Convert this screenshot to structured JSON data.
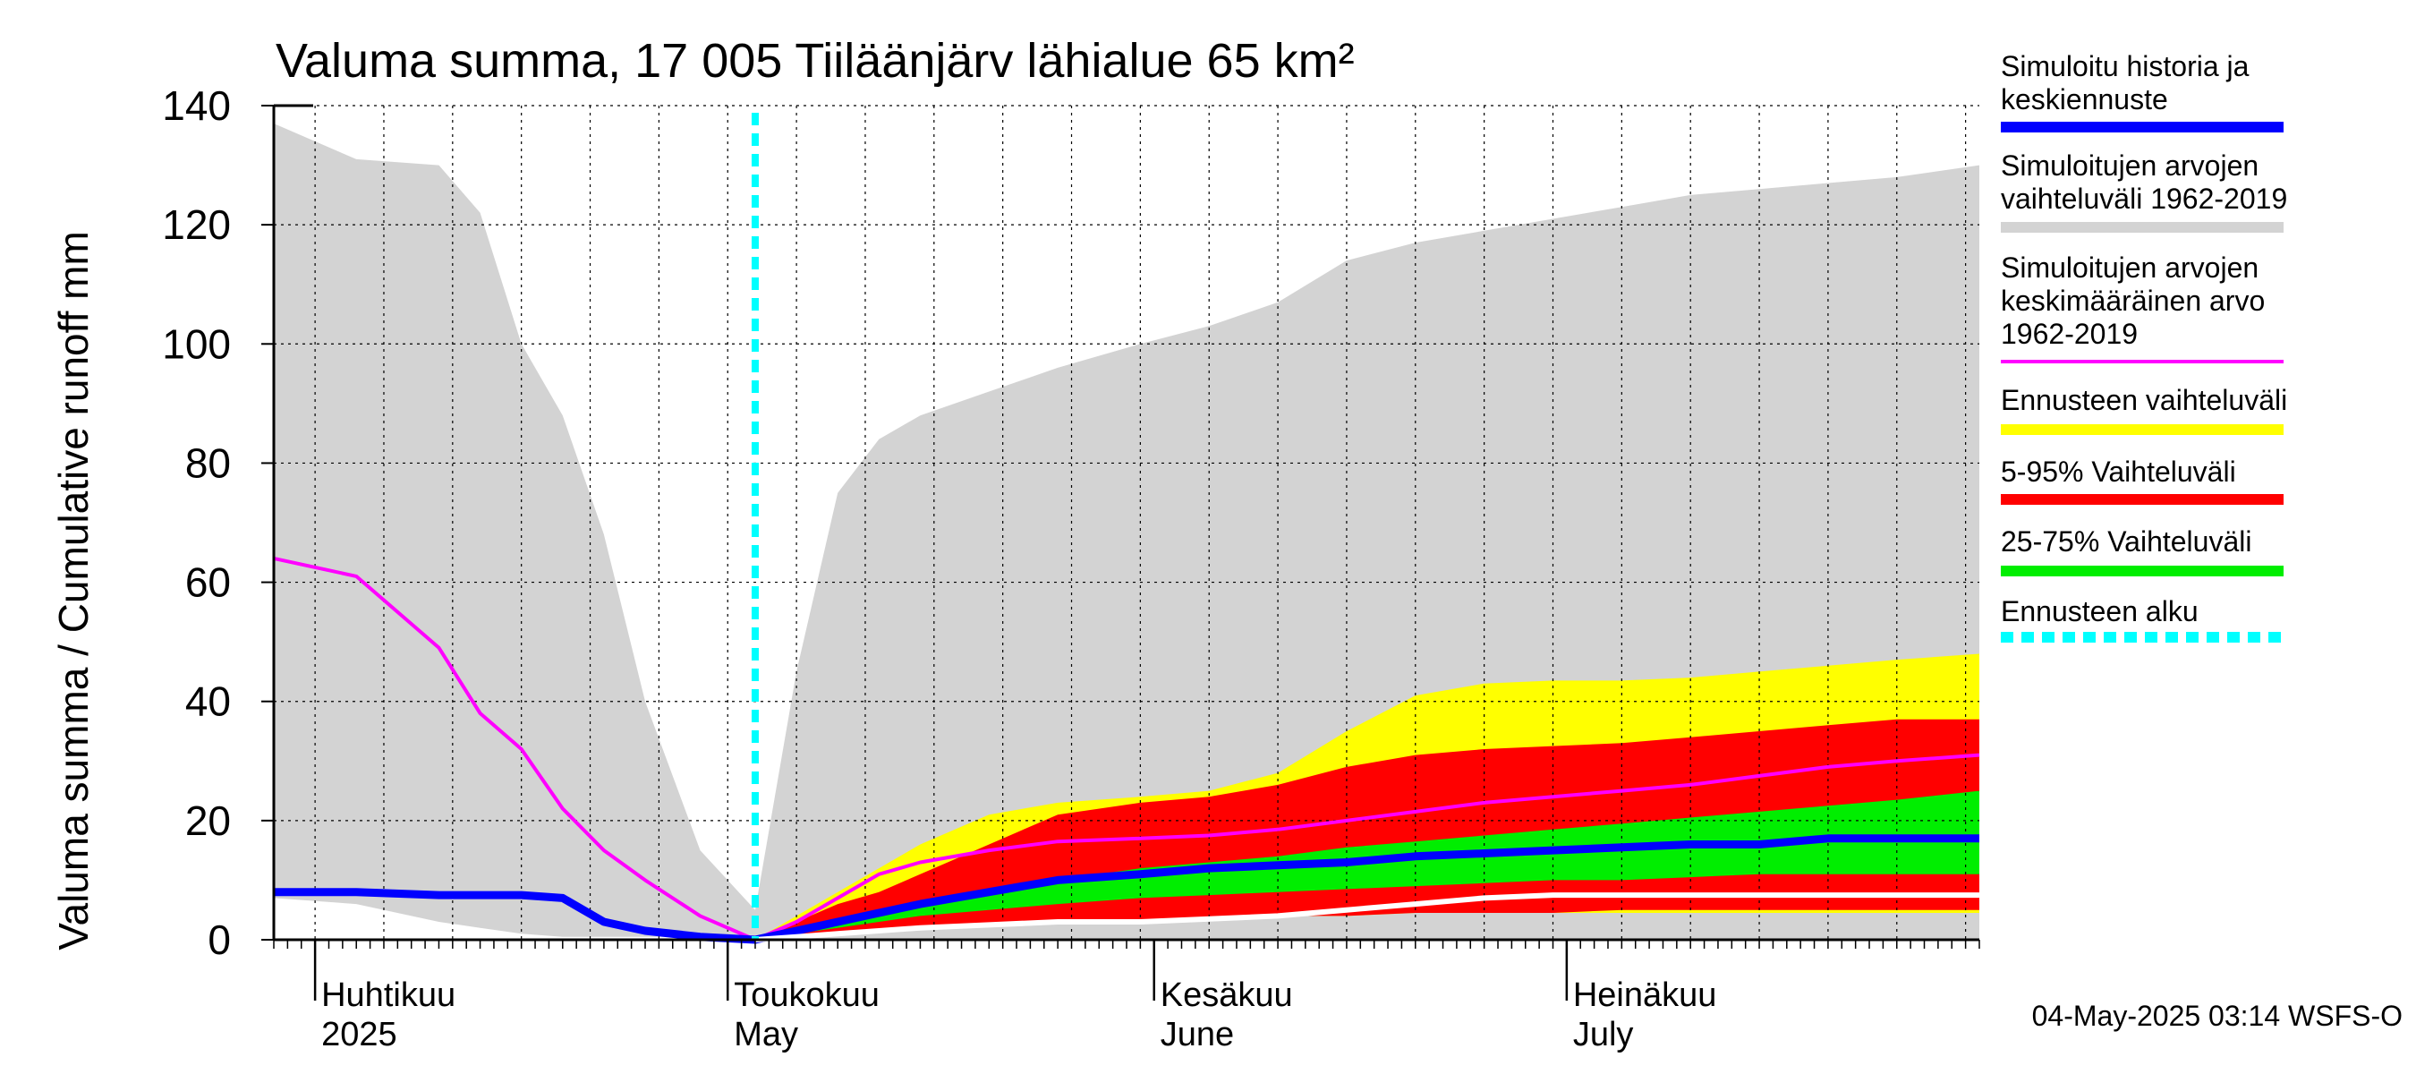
{
  "chart_data": {
    "type": "area",
    "title": "Valuma summa, 17 005 Tiiläänjärv lähialue 65 km²",
    "ylabel": "Valuma summa / Cumulative runoff    mm",
    "ylim": [
      0,
      140
    ],
    "yticks": [
      0,
      20,
      40,
      60,
      80,
      100,
      120,
      140
    ],
    "x_range": [
      "2025-03-29",
      "2025-07-31"
    ],
    "grid": true,
    "legend_placement": "right",
    "forecast_start": "2025-05-03",
    "months": [
      {
        "label": "Huhtikuu",
        "sub": "2025",
        "date": "2025-04-01"
      },
      {
        "label": "Toukokuu",
        "sub": "May",
        "date": "2025-05-01"
      },
      {
        "label": "Kesäkuu",
        "sub": "June",
        "date": "2025-06-01"
      },
      {
        "label": "Heinäkuu",
        "sub": "July",
        "date": "2025-07-01"
      }
    ],
    "x": [
      "2025-03-29",
      "2025-04-04",
      "2025-04-10",
      "2025-04-13",
      "2025-04-16",
      "2025-04-19",
      "2025-04-22",
      "2025-04-25",
      "2025-04-29",
      "2025-05-03",
      "2025-05-06",
      "2025-05-09",
      "2025-05-12",
      "2025-05-15",
      "2025-05-20",
      "2025-05-25",
      "2025-05-31",
      "2025-06-05",
      "2025-06-10",
      "2025-06-15",
      "2025-06-20",
      "2025-06-25",
      "2025-06-30",
      "2025-07-05",
      "2025-07-10",
      "2025-07-15",
      "2025-07-20",
      "2025-07-25",
      "2025-07-31"
    ],
    "series": [
      {
        "name": "Simuloitujen arvojen vaihteluväli 1962-2019",
        "color": "#d3d3d3",
        "lower": [
          7,
          6,
          3,
          2,
          1,
          0.5,
          0.5,
          0.5,
          0.5,
          0,
          0,
          0,
          0,
          0,
          0,
          0,
          0,
          0,
          0,
          0,
          0,
          0,
          0,
          0,
          0,
          0,
          0,
          0,
          0
        ],
        "upper": [
          137,
          131,
          130,
          122,
          100,
          88,
          68,
          40,
          15,
          5,
          45,
          75,
          84,
          88,
          92,
          96,
          100,
          103,
          107,
          114,
          117,
          119,
          121,
          123,
          125,
          126,
          127,
          128,
          130
        ]
      },
      {
        "name": "Ennusteen vaihteluväli",
        "color": "#ffff00",
        "lower": [
          null,
          null,
          null,
          null,
          null,
          null,
          null,
          null,
          null,
          0,
          0.5,
          1,
          1.5,
          2,
          2.5,
          3,
          3,
          3.5,
          4,
          4,
          4.5,
          4.5,
          4.5,
          4.5,
          4.5,
          4.5,
          4.5,
          4.5,
          4.5
        ],
        "upper": [
          null,
          null,
          null,
          null,
          null,
          null,
          null,
          null,
          null,
          0,
          4,
          8,
          12,
          16,
          21,
          23,
          24,
          25,
          28,
          35,
          41,
          43,
          43.5,
          43.5,
          44,
          45,
          46,
          47,
          48
        ]
      },
      {
        "name": "5-95% Vaihteluväli",
        "color": "#ff0000",
        "lower": [
          null,
          null,
          null,
          null,
          null,
          null,
          null,
          null,
          null,
          0,
          0.5,
          1,
          1.5,
          2,
          2.5,
          3,
          3,
          3.5,
          4,
          4,
          4.5,
          4.5,
          4.5,
          5,
          5,
          5,
          5,
          5,
          5
        ],
        "upper": [
          null,
          null,
          null,
          null,
          null,
          null,
          null,
          null,
          null,
          0,
          3,
          6,
          8,
          11,
          16,
          21,
          23,
          24,
          26,
          29,
          31,
          32,
          32.5,
          33,
          34,
          35,
          36,
          37,
          37
        ]
      },
      {
        "name": "25-75% Vaihteluväli",
        "color": "#00ee00",
        "lower": [
          null,
          null,
          null,
          null,
          null,
          null,
          null,
          null,
          null,
          0,
          1,
          2,
          3,
          4,
          5,
          6,
          7,
          7.5,
          8,
          8.5,
          9,
          9.5,
          10,
          10,
          10.5,
          11,
          11,
          11,
          11
        ],
        "upper": [
          null,
          null,
          null,
          null,
          null,
          null,
          null,
          null,
          null,
          0,
          2,
          3.5,
          5,
          6.5,
          8,
          10,
          12,
          13,
          14,
          15.5,
          16.5,
          17.5,
          18.5,
          19.5,
          20.5,
          21.5,
          22.5,
          23.5,
          25
        ]
      },
      {
        "name": "Simuloitujen arvojen keskimääräinen arvo 1962-2019",
        "color": "#ff00ff",
        "values": [
          64,
          61,
          49,
          38,
          32,
          22,
          15,
          10,
          4,
          0,
          3,
          7,
          11,
          13,
          15,
          16.5,
          17,
          17.5,
          18.5,
          20,
          21.5,
          23,
          24,
          25,
          26,
          27.5,
          29,
          30,
          31
        ]
      },
      {
        "name": "Simuloitu historia ja keskiennuste",
        "color": "#0000ff",
        "values": [
          8,
          8,
          7.5,
          7.5,
          7.5,
          7,
          3,
          1.5,
          0.5,
          0,
          1.5,
          3,
          4.5,
          6,
          8,
          10,
          11,
          12,
          12.5,
          13,
          14,
          14.5,
          15,
          15.5,
          16,
          16,
          17,
          17,
          17
        ]
      },
      {
        "name": "Min",
        "color": "#ffffff",
        "values": [
          null,
          null,
          null,
          null,
          null,
          null,
          null,
          null,
          null,
          0,
          0.5,
          1,
          1.5,
          2,
          2.5,
          3,
          3,
          3.5,
          4,
          5,
          6,
          7,
          7.5,
          7.5,
          7.5,
          7.5,
          7.5,
          7.5,
          7.5
        ]
      }
    ]
  },
  "legend": [
    {
      "lines": [
        "Simuloitu historia ja",
        "keskiennuste"
      ],
      "color": "#0000ff",
      "style": "solid"
    },
    {
      "lines": [
        "Simuloitujen arvojen",
        "vaihteluväli 1962-2019"
      ],
      "color": "#d3d3d3",
      "style": "solid"
    },
    {
      "lines": [
        "Simuloitujen arvojen",
        "keskimääräinen arvo",
        "   1962-2019"
      ],
      "color": "#ff00ff",
      "style": "solid"
    },
    {
      "lines": [
        "Ennusteen vaihteluväli"
      ],
      "color": "#ffff00",
      "style": "solid"
    },
    {
      "lines": [
        "5-95% Vaihteluväli"
      ],
      "color": "#ff0000",
      "style": "solid"
    },
    {
      "lines": [
        "25-75% Vaihteluväli"
      ],
      "color": "#00ee00",
      "style": "solid"
    },
    {
      "lines": [
        "Ennusteen alku"
      ],
      "color": "#00ffff",
      "style": "dashed"
    }
  ],
  "footer": "04-May-2025 03:14 WSFS-O"
}
